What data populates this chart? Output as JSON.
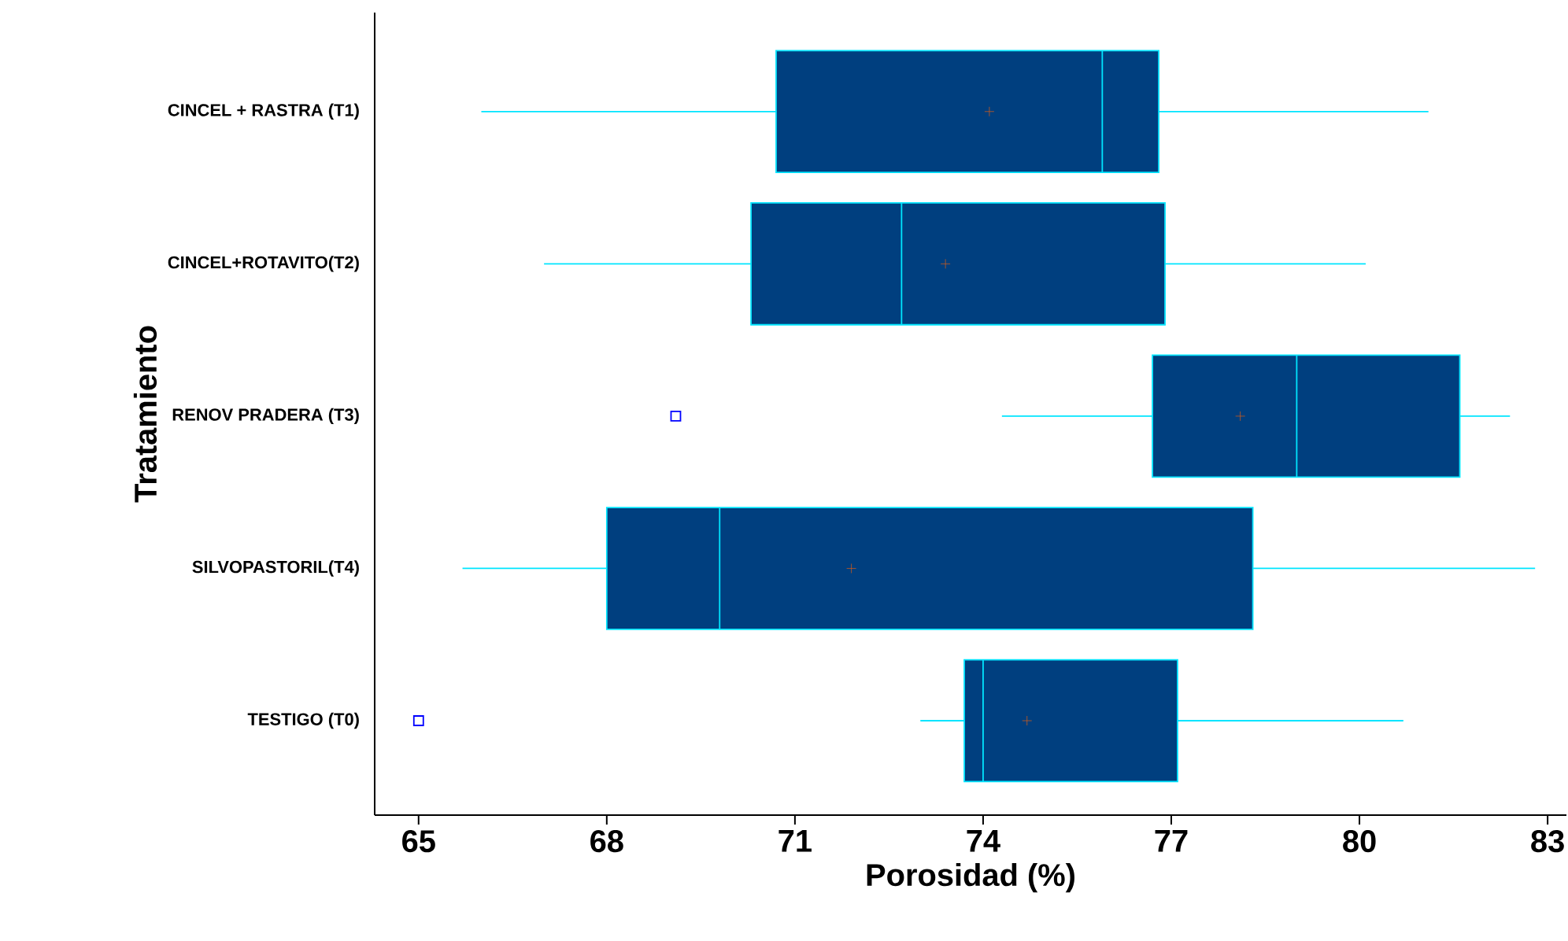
{
  "chart_data": {
    "type": "box",
    "orientation": "horizontal",
    "xlabel": "Porosidad (%)",
    "ylabel": "Tratamiento",
    "categories": [
      "CINCEL + RASTRA (T1)",
      "CINCEL+ROTAVITO(T2)",
      "RENOV PRADERA (T3)",
      "SILVOPASTORIL(T4)",
      "TESTIGO (T0)"
    ],
    "xlim": [
      64.3,
      83.3
    ],
    "xticks": [
      65,
      68,
      71,
      74,
      77,
      80,
      83
    ],
    "series": [
      {
        "color": "#003f7f",
        "boxes": [
          {
            "low": 66.0,
            "q1": 70.7,
            "median": 75.9,
            "q3": 76.8,
            "high": 81.1,
            "mean": 74.1
          },
          {
            "low": 67.0,
            "q1": 70.3,
            "median": 72.7,
            "q3": 76.9,
            "high": 80.1,
            "mean": 73.4
          },
          {
            "low": 74.3,
            "q1": 76.7,
            "median": 79.0,
            "q3": 81.6,
            "high": 82.4,
            "mean": 78.1,
            "outliers": [
              69.1
            ]
          },
          {
            "low": 65.7,
            "q1": 68.0,
            "median": 69.8,
            "q3": 78.3,
            "high": 82.8,
            "mean": 71.9
          },
          {
            "low": 73.0,
            "q1": 73.7,
            "median": 74.0,
            "q3": 77.1,
            "high": 80.7,
            "mean": 74.7,
            "outliers": [
              65.0
            ]
          }
        ]
      }
    ]
  }
}
